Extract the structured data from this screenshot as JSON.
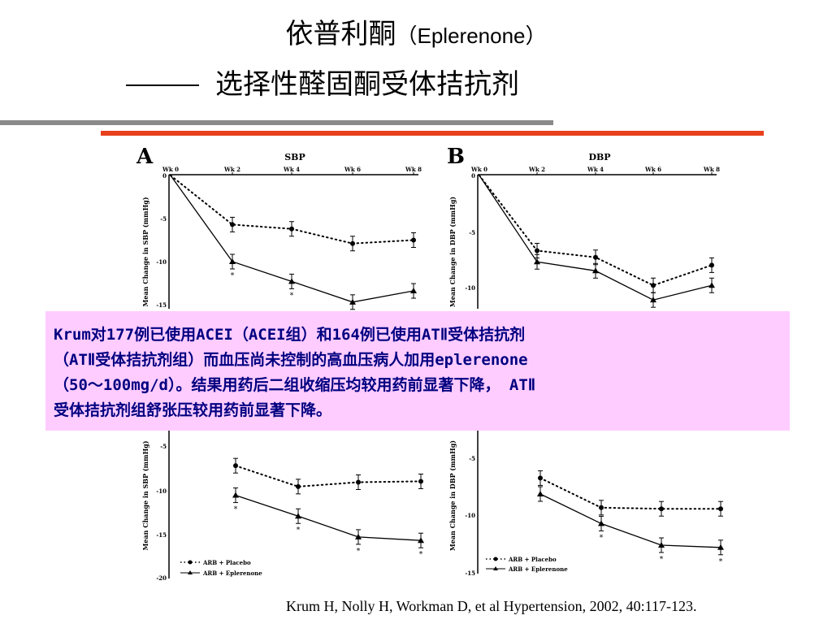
{
  "slide": {
    "title_cn": "依普利酮",
    "title_en": "（Eplerenone）",
    "subtitle": "选择性醛固酮受体拮抗剂",
    "callout_lines": [
      "Krum对177例已使用ACEI（ACEI组）和164例已使用ATⅡ受体拮抗剂",
      "（ATⅡ受体拮抗剂组）而血压尚未控制的高血压病人加用eplerenone",
      "（50～100mg/d）。结果用药后二组收缩压均较用药前显著下降， ATⅡ",
      "受体拮抗剂组舒张压较用药前显著下降。"
    ],
    "citation": "Krum H, Nolly H, Workman D, et al Hypertension, 2002, 40:117-123."
  },
  "panels": {
    "A": {
      "letter": "A",
      "title": "SBP",
      "week_labels": [
        "Wk 0",
        "Wk 2",
        "Wk 4",
        "Wk 6",
        "Wk 8"
      ],
      "ylabel_top": "Mean Change in SBP (mmHg)",
      "ylabel_bottom": "Mean Change in SBP (mmHg)",
      "top_ticks": [
        "0",
        "-5",
        "-10",
        "-15"
      ],
      "bottom_ticks": [
        "-5",
        "-10",
        "-15",
        "-20"
      ],
      "legend": [
        "ARB + Placebo",
        "ARB + Eplerenone"
      ]
    },
    "B": {
      "letter": "B",
      "title": "DBP",
      "week_labels": [
        "Wk 0",
        "Wk 2",
        "Wk 4",
        "Wk 6",
        "Wk 8"
      ],
      "ylabel_top": "Mean Change in DBP (mmHg)",
      "ylabel_bottom": "Mean Change in DBP (mmHg)",
      "top_ticks": [
        "0",
        "-5",
        "-10"
      ],
      "bottom_ticks": [
        "-5",
        "-10",
        "-15"
      ],
      "legend": [
        "ARB + Placebo",
        "ARB + Eplerenone"
      ]
    }
  },
  "curves": {
    "x_weeks": [
      0,
      2,
      4,
      6,
      8
    ],
    "A_top": {
      "placebo": [
        0,
        -5.7,
        -6.2,
        -7.9,
        -7.5
      ],
      "eplerenone": [
        0,
        -10.0,
        -12.3,
        -14.7,
        -13.4
      ]
    },
    "B_top": {
      "placebo": [
        0,
        -6.7,
        -7.3,
        -9.8,
        -8.0
      ],
      "eplerenone": [
        0,
        -7.7,
        -8.5,
        -11.1,
        -9.8
      ]
    },
    "A_bottom": {
      "placebo": [
        -7.4,
        -9.8,
        -9.3,
        -9.2
      ],
      "eplerenone": [
        -10.8,
        -13.2,
        -15.6,
        -16.0
      ]
    },
    "B_bottom": {
      "placebo": [
        -6.6,
        -9.2,
        -9.3,
        -9.3
      ],
      "eplerenone": [
        -8.0,
        -10.6,
        -12.5,
        -12.7
      ]
    }
  },
  "marks": {
    "significance": "*"
  }
}
